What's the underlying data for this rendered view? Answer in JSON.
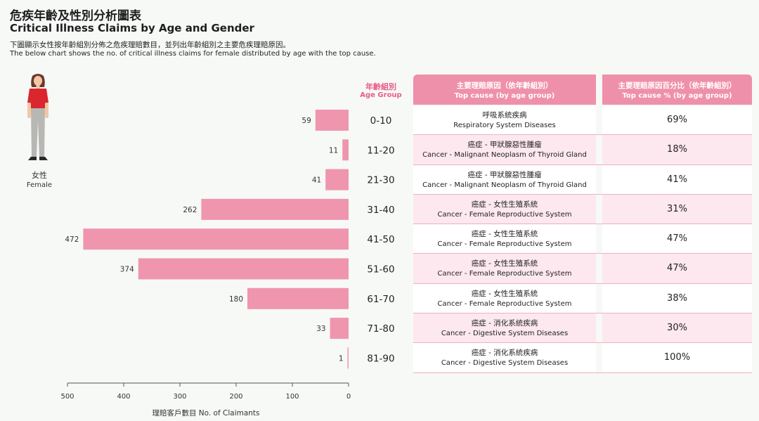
{
  "title_zh": "危疾年齡及性別分析圖表",
  "title_en": "Critical Illness Claims by Age and Gender",
  "subtitle_zh": "下圖顯示女性按年齡組別分佈之危疾理賠數目，並列出年齡組別之主要危疾理賠原因。",
  "subtitle_en": "The below chart shows the no. of critical illness claims for female distributed by age with the top cause.",
  "gender": {
    "zh": "女性",
    "en": "Female"
  },
  "age_group_header": {
    "zh": "年齡組別",
    "en": "Age Group"
  },
  "top_cause_header": {
    "zh": "主要理賠原因（依年齡組別）",
    "en": "Top cause (by age group)"
  },
  "top_pct_header": {
    "zh": "主要理賠原因百分比（依年齡組別）",
    "en": "Top cause % (by age group)"
  },
  "colors": {
    "bar": "#ef96ae",
    "accent": "#e85d88",
    "header": "#ef90aa"
  },
  "chart_data": {
    "type": "bar",
    "orientation": "horizontal",
    "direction": "right-to-left",
    "categories": [
      "0-10",
      "11-20",
      "21-30",
      "31-40",
      "41-50",
      "51-60",
      "61-70",
      "71-80",
      "81-90"
    ],
    "values": [
      59,
      11,
      41,
      262,
      472,
      374,
      180,
      33,
      1
    ],
    "xlabel": "理賠客戶數目 No. of Claimants",
    "xlim": [
      0,
      500
    ],
    "xticks": [
      500,
      400,
      300,
      200,
      100,
      0
    ],
    "grid": false
  },
  "rows": [
    {
      "cause_zh": "呼吸系統疾病",
      "cause_en": "Respiratory System Diseases",
      "pct": "69%"
    },
    {
      "cause_zh": "癌症 - 甲狀腺惡性腫瘤",
      "cause_en": "Cancer - Malignant Neoplasm of Thyroid Gland",
      "pct": "18%"
    },
    {
      "cause_zh": "癌症 - 甲狀腺惡性腫瘤",
      "cause_en": "Cancer - Malignant Neoplasm of Thyroid Gland",
      "pct": "41%"
    },
    {
      "cause_zh": "癌症 - 女性生殖系統",
      "cause_en": "Cancer - Female Reproductive System",
      "pct": "31%"
    },
    {
      "cause_zh": "癌症 - 女性生殖系統",
      "cause_en": "Cancer - Female Reproductive System",
      "pct": "47%"
    },
    {
      "cause_zh": "癌症 - 女性生殖系統",
      "cause_en": "Cancer - Female Reproductive System",
      "pct": "47%"
    },
    {
      "cause_zh": "癌症 - 女性生殖系統",
      "cause_en": "Cancer - Female Reproductive System",
      "pct": "38%"
    },
    {
      "cause_zh": "癌症 - 消化系統疾病",
      "cause_en": "Cancer - Digestive System Diseases",
      "pct": "30%"
    },
    {
      "cause_zh": "癌症 - 消化系統疾病",
      "cause_en": "Cancer - Digestive System Diseases",
      "pct": "100%"
    }
  ]
}
